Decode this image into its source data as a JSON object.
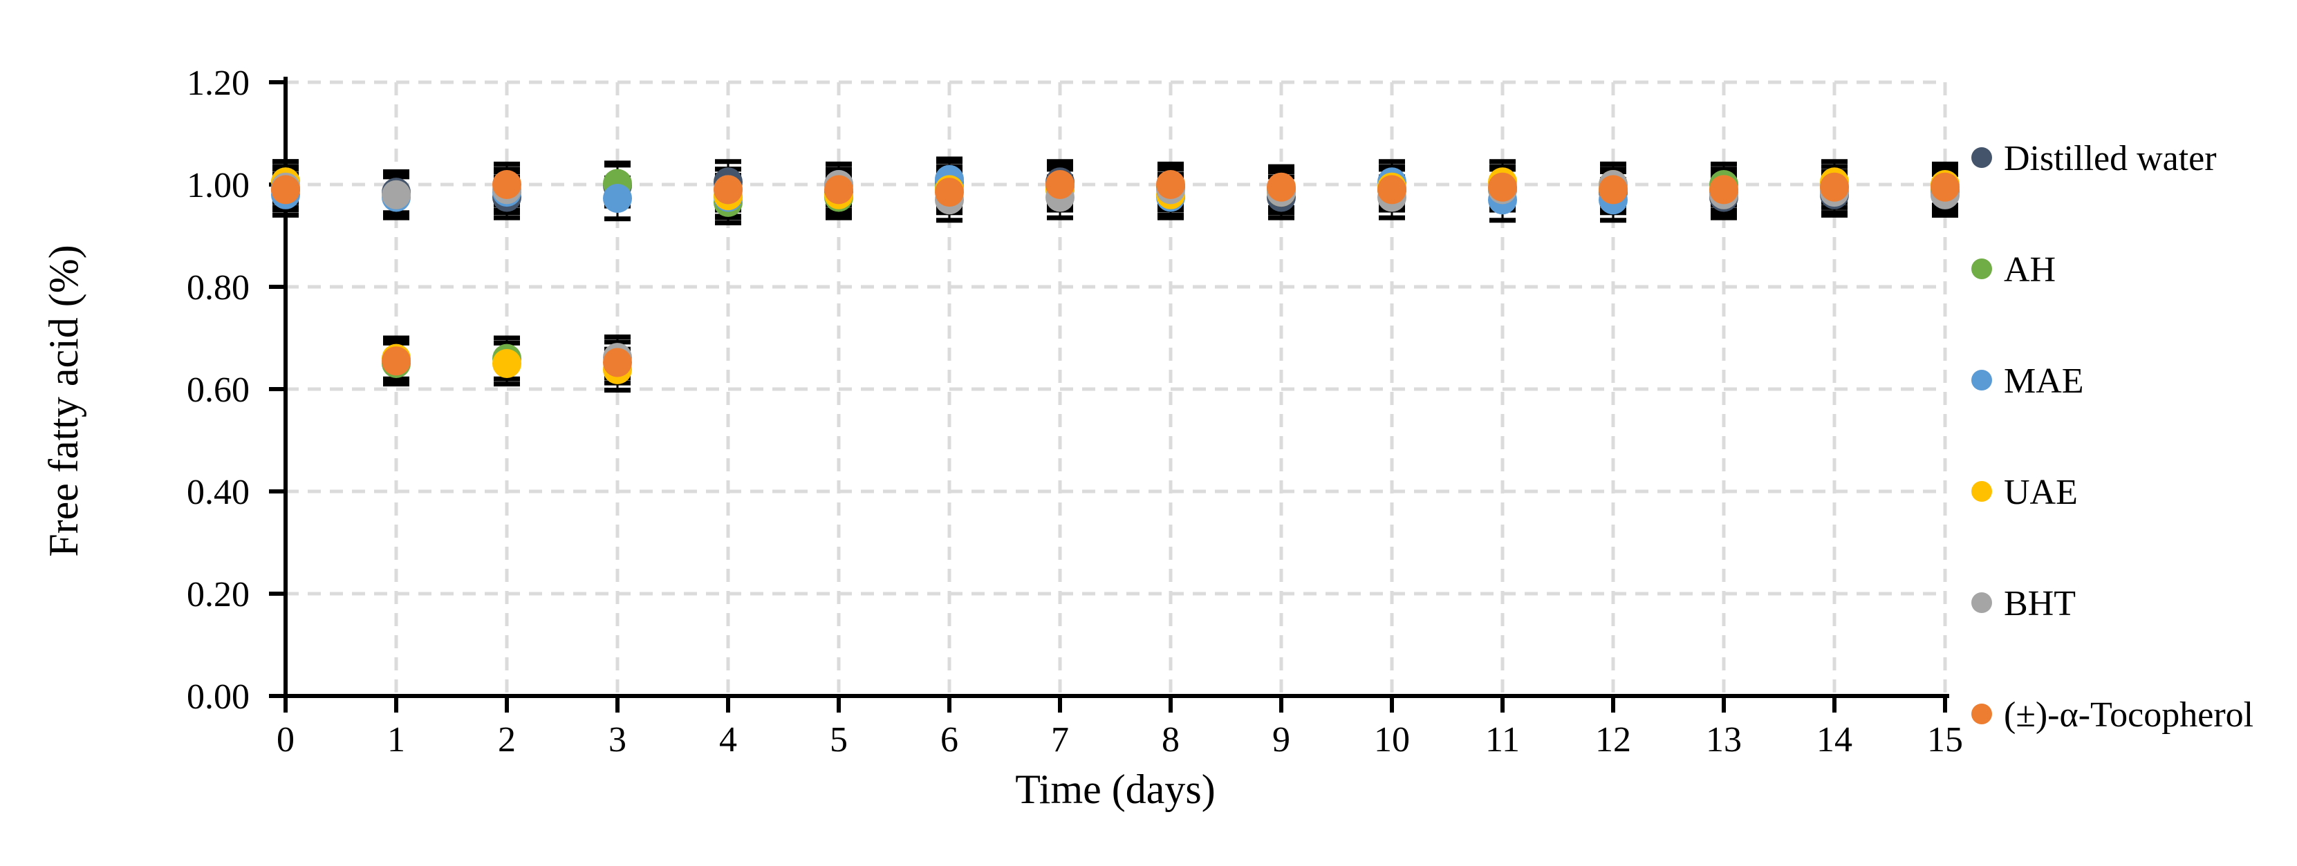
{
  "figure": {
    "background": "#FFFFFF"
  },
  "chart_data": {
    "type": "scatter",
    "title": "",
    "xlabel": "Time (days)",
    "ylabel": "Free fatty acid (%)",
    "x": [
      0,
      1,
      2,
      3,
      4,
      5,
      6,
      7,
      8,
      9,
      10,
      11,
      12,
      13,
      14,
      15
    ],
    "xtick_labels": [
      "0",
      "1",
      "2",
      "3",
      "4",
      "5",
      "6",
      "7",
      "8",
      "9",
      "10",
      "11",
      "12",
      "13",
      "14",
      "15"
    ],
    "xlim": [
      0,
      15
    ],
    "ylim": [
      0.0,
      1.2
    ],
    "ytick_step": 0.2,
    "ytick_labels": [
      "0.00",
      "0.20",
      "0.40",
      "0.60",
      "0.80",
      "1.00",
      "1.20"
    ],
    "grid": {
      "show": true,
      "style": "dashed",
      "color": "#DBDBDB"
    },
    "axis_color": "#000000",
    "background": "#FFFFFF",
    "legend_position": "right",
    "marker": "circle",
    "error_bar": 0.04,
    "error_bar_color": "#000000",
    "series": [
      {
        "name": "Distilled water",
        "color": "#44546A",
        "values": [
          0.99,
          0.985,
          0.975,
          0.998,
          1.005,
          0.985,
          1.005,
          1.005,
          0.995,
          0.975,
          0.99,
          0.99,
          0.985,
          0.975,
          0.98,
          0.985
        ]
      },
      {
        "name": "AH",
        "color": "#70AD47",
        "values": [
          1.005,
          0.65,
          0.66,
          1.002,
          0.965,
          0.975,
          0.995,
          0.995,
          0.995,
          0.99,
          0.99,
          0.99,
          0.99,
          1.0,
          0.995,
          0.99
        ]
      },
      {
        "name": "MAE",
        "color": "#5B9BD5",
        "values": [
          0.98,
          0.975,
          0.985,
          0.973,
          0.975,
          1.0,
          1.01,
          0.99,
          0.975,
          0.99,
          1.005,
          0.97,
          0.97,
          0.985,
          0.985,
          0.98
        ]
      },
      {
        "name": "UAE",
        "color": "#FFC000",
        "values": [
          1.005,
          0.66,
          0.65,
          0.638,
          0.978,
          0.98,
          0.99,
          0.99,
          0.98,
          0.985,
          0.995,
          1.005,
          1.0,
          0.99,
          1.005,
          1.0
        ]
      },
      {
        "name": "BHT",
        "color": "#A5A5A5",
        "values": [
          0.995,
          0.98,
          0.99,
          0.662,
          0.99,
          1.0,
          0.97,
          0.975,
          0.99,
          0.985,
          0.975,
          0.99,
          1.0,
          0.98,
          0.985,
          0.98
        ]
      },
      {
        "name": "(±)-α-Tocopherol",
        "color": "#ED7D31",
        "values": [
          0.99,
          0.655,
          1.0,
          0.652,
          0.99,
          0.99,
          0.985,
          1.0,
          1.0,
          0.995,
          0.99,
          0.995,
          0.99,
          0.99,
          0.995,
          0.995
        ]
      }
    ]
  }
}
